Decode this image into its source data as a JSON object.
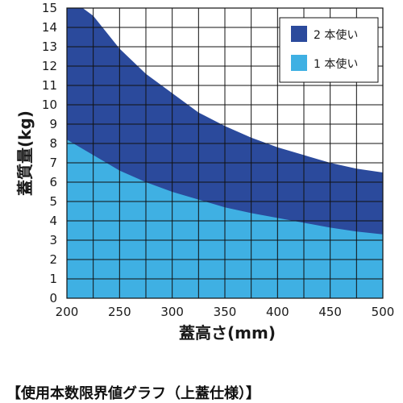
{
  "caption": "【使用本数限界値グラフ（上蓋仕様）】",
  "chart_data": {
    "type": "area",
    "xlabel": "蓋高さ(mm)",
    "ylabel": "蓋質量(kg)",
    "xlim": [
      200,
      500
    ],
    "ylim": [
      0,
      15
    ],
    "x_ticks": [
      200,
      250,
      300,
      350,
      400,
      450,
      500
    ],
    "y_ticks": [
      0,
      1,
      2,
      3,
      4,
      5,
      6,
      7,
      8,
      9,
      10,
      11,
      12,
      13,
      14,
      15
    ],
    "grid": true,
    "legend_position": "top-right",
    "series": [
      {
        "name": "2 本使い",
        "color": "#2b4a9c",
        "x": [
          200,
          215,
          225,
          250,
          275,
          300,
          325,
          350,
          375,
          400,
          425,
          450,
          475,
          500
        ],
        "values": [
          15,
          15,
          14.6,
          12.9,
          11.6,
          10.6,
          9.6,
          8.9,
          8.3,
          7.8,
          7.4,
          7.0,
          6.7,
          6.5
        ]
      },
      {
        "name": "1 本使い",
        "color": "#3fb0e3",
        "x": [
          200,
          225,
          250,
          275,
          300,
          325,
          350,
          375,
          400,
          425,
          450,
          475,
          500
        ],
        "values": [
          8.2,
          7.4,
          6.6,
          6.0,
          5.5,
          5.1,
          4.7,
          4.4,
          4.15,
          3.9,
          3.65,
          3.45,
          3.3
        ]
      }
    ]
  }
}
